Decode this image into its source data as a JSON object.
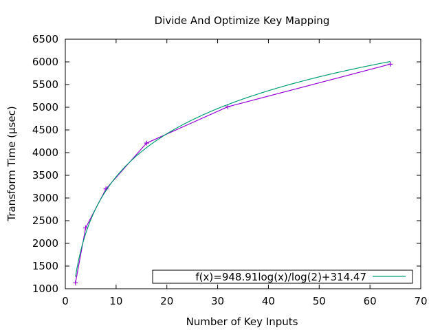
{
  "chart_data": {
    "type": "line",
    "title": "Divide And Optimize Key Mapping",
    "xlabel": "Number of Key Inputs",
    "ylabel": "Transform Time (µsec)",
    "xlim": [
      0,
      70
    ],
    "ylim": [
      1000,
      6500
    ],
    "xticks": [
      0,
      10,
      20,
      30,
      40,
      50,
      60,
      70
    ],
    "yticks": [
      1000,
      1500,
      2000,
      2500,
      3000,
      3500,
      4000,
      4500,
      5000,
      5500,
      6000,
      6500
    ],
    "grid": false,
    "legend_position": "bottom-right",
    "series": [
      {
        "type": "line-points",
        "color": "#9400d3",
        "marker": "plus",
        "x": [
          2,
          4,
          8,
          16,
          32,
          64
        ],
        "y": [
          1130,
          2340,
          3200,
          4210,
          5010,
          5950
        ]
      },
      {
        "type": "function",
        "name": "f(x)=948.91log(x)/log(2)+314.47",
        "color": "#009e73",
        "a": 948.91,
        "b": 314.47,
        "domain": [
          2,
          64
        ]
      }
    ]
  }
}
